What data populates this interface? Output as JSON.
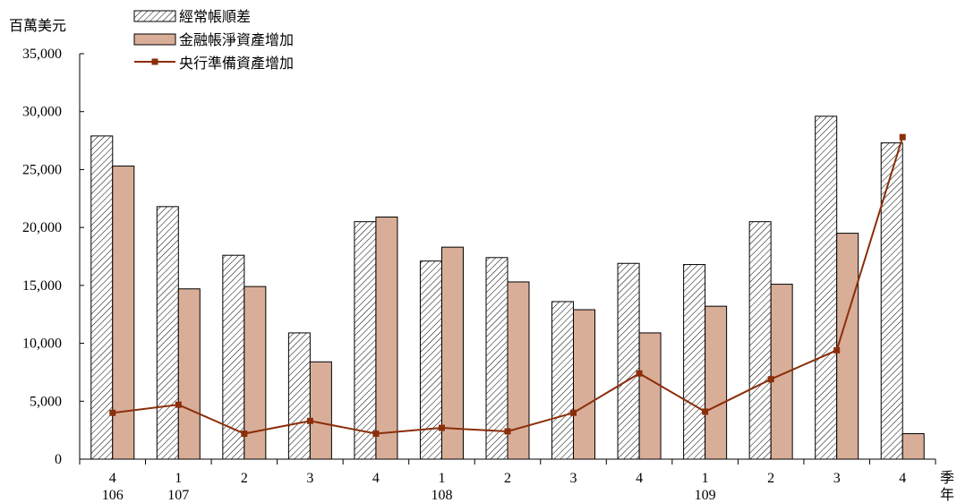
{
  "chart_data": {
    "type": "bar",
    "ylabel": "百萬美元",
    "xlabel_quarter": "季",
    "xlabel_year": "年",
    "ylim": [
      0,
      35000
    ],
    "yticks": [
      0,
      5000,
      10000,
      15000,
      20000,
      25000,
      30000,
      35000
    ],
    "ytick_labels": [
      "0",
      "5,000",
      "10,000",
      "15,000",
      "20,000",
      "25,000",
      "30,000",
      "35,000"
    ],
    "categories": [
      {
        "quarter": "4",
        "year": "106"
      },
      {
        "quarter": "1",
        "year": "107"
      },
      {
        "quarter": "2",
        "year": ""
      },
      {
        "quarter": "3",
        "year": ""
      },
      {
        "quarter": "4",
        "year": ""
      },
      {
        "quarter": "1",
        "year": "108"
      },
      {
        "quarter": "2",
        "year": ""
      },
      {
        "quarter": "3",
        "year": ""
      },
      {
        "quarter": "4",
        "year": ""
      },
      {
        "quarter": "1",
        "year": "109"
      },
      {
        "quarter": "2",
        "year": ""
      },
      {
        "quarter": "3",
        "year": ""
      },
      {
        "quarter": "4",
        "year": ""
      }
    ],
    "series": [
      {
        "name": "經常帳順差",
        "kind": "bar",
        "style": "hatched",
        "values": [
          27900,
          21800,
          17600,
          10900,
          20500,
          17100,
          17400,
          13600,
          16900,
          16800,
          20500,
          29600,
          27300
        ]
      },
      {
        "name": "金融帳淨資產增加",
        "kind": "bar",
        "color": "#d9ae98",
        "values": [
          25300,
          14700,
          14900,
          8400,
          20900,
          18300,
          15300,
          12900,
          10900,
          13200,
          15100,
          19500,
          2200
        ]
      },
      {
        "name": "央行準備資產增加",
        "kind": "line",
        "color": "#8b2e0a",
        "values": [
          4000,
          4700,
          2200,
          3300,
          2200,
          2700,
          2400,
          4000,
          7400,
          4100,
          6900,
          9400,
          27800
        ]
      }
    ],
    "legend_position": "top-left",
    "grid": false
  }
}
